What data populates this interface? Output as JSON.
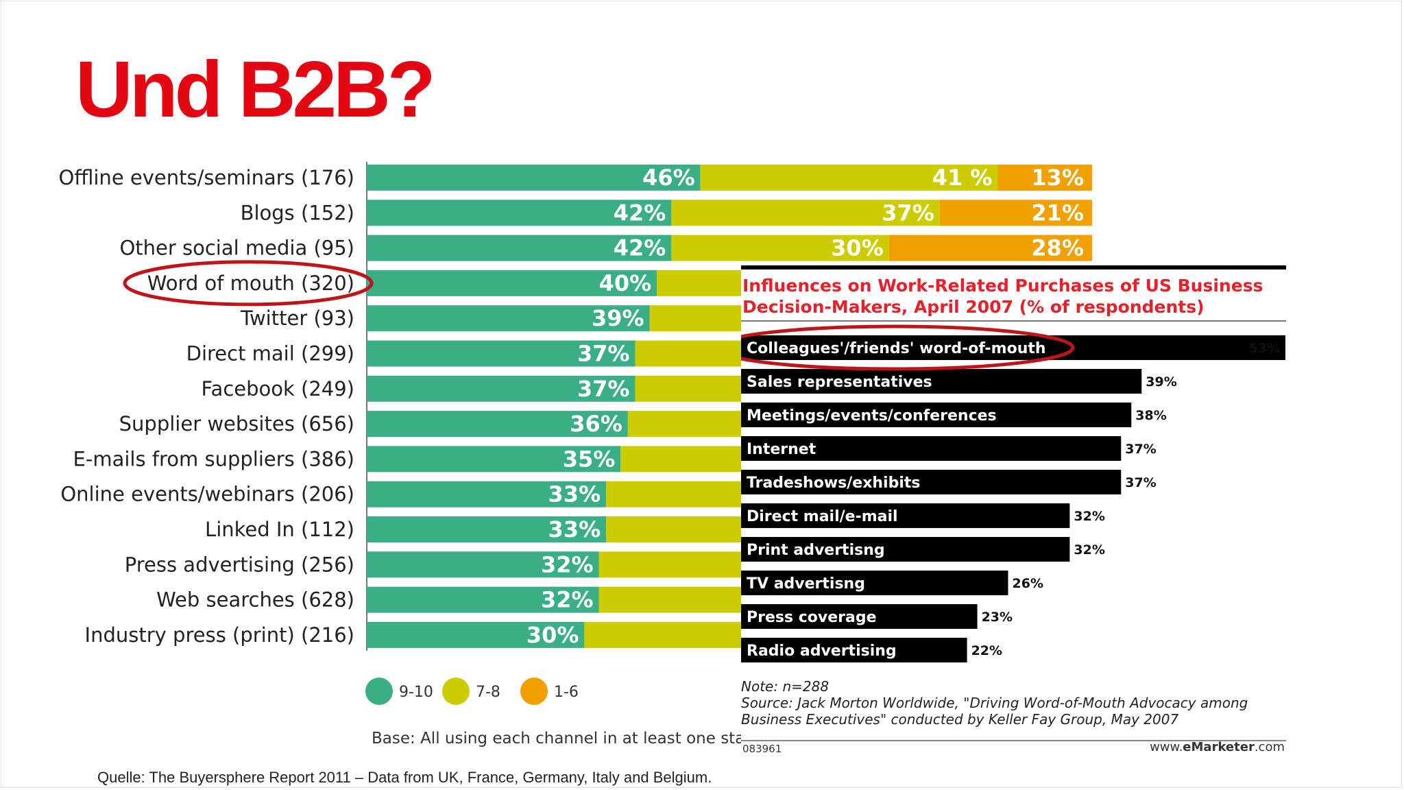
{
  "slide": {
    "title": "Und B2B?",
    "source": "Quelle: The Buyersphere Report 2011 – Data from UK, France, Germany, Italy and Belgium."
  },
  "chart_data": [
    {
      "type": "bar",
      "orientation": "horizontal",
      "stacked": true,
      "categories": [
        "Offline events/seminars (176)",
        "Blogs (152)",
        "Other social media (95)",
        "Word of mouth (320)",
        "Twitter (93)",
        "Direct mail (299)",
        "Facebook (249)",
        "Supplier websites (656)",
        "E-mails from suppliers (386)",
        "Online events/webinars (206)",
        "Linked In (112)",
        "Press advertising (256)",
        "Web searches (628)",
        "Industry press (print) (216)"
      ],
      "series": [
        {
          "name": "9-10",
          "color": "#3aaf85",
          "values": [
            46,
            42,
            42,
            40,
            39,
            37,
            37,
            36,
            35,
            33,
            33,
            32,
            32,
            30
          ],
          "labels": [
            "46%",
            "42%",
            "42%",
            "40%",
            "39%",
            "37%",
            "37%",
            "36%",
            "35%",
            "33%",
            "33%",
            "32%",
            "32%",
            "30%"
          ]
        },
        {
          "name": "7-8",
          "color": "#cccc00",
          "values": [
            41,
            37,
            30,
            null,
            null,
            null,
            null,
            null,
            null,
            null,
            null,
            null,
            null,
            null
          ],
          "labels": [
            "41 %",
            "37%",
            "30%",
            "",
            "",
            "",
            "",
            "",
            "",
            "",
            "",
            "",
            "",
            ""
          ]
        },
        {
          "name": "1-6",
          "color": "#f0a000",
          "values": [
            13,
            21,
            28,
            null,
            null,
            null,
            null,
            null,
            null,
            null,
            null,
            null,
            null,
            null
          ],
          "labels": [
            "13%",
            "21%",
            "28%",
            "",
            "",
            "",
            "",
            "",
            "",
            "",
            "",
            "",
            "",
            ""
          ]
        }
      ],
      "xlim": [
        0,
        100
      ],
      "highlighted_category": "Word of mouth (320)",
      "legend_position": "bottom-left",
      "note": "Base: All using each channel in at least one stage"
    },
    {
      "type": "bar",
      "orientation": "horizontal",
      "title": "Influences on Work-Related Purchases of US Business Decision-Makers, April 2007 (% of respondents)",
      "categories": [
        "Colleagues'/friends' word-of-mouth",
        "Sales representatives",
        "Meetings/events/conferences",
        "Internet",
        "Tradeshows/exhibits",
        "Direct mail/e-mail",
        "Print advertisng",
        "TV advertisng",
        "Press coverage",
        "Radio advertising"
      ],
      "values": [
        53,
        39,
        38,
        37,
        37,
        32,
        32,
        26,
        23,
        22
      ],
      "labels": [
        "53%",
        "39%",
        "38%",
        "37%",
        "37%",
        "32%",
        "32%",
        "26%",
        "23%",
        "22%"
      ],
      "bar_color": "#000000",
      "highlighted_category": "Colleagues'/friends' word-of-mouth",
      "note": "Note: n=288",
      "source": "Source: Jack Morton Worldwide, \"Driving Word-of-Mouth Advocacy among Business Executives\" conducted by Keller Fay Group, May 2007",
      "code": "083961",
      "brand_prefix": "www.",
      "brand_name": "eMarketer",
      "brand_suffix": ".com"
    }
  ],
  "colors": {
    "title": "#e30613",
    "highlight_ring": "#c0141b",
    "inset_title": "#e8202a"
  }
}
